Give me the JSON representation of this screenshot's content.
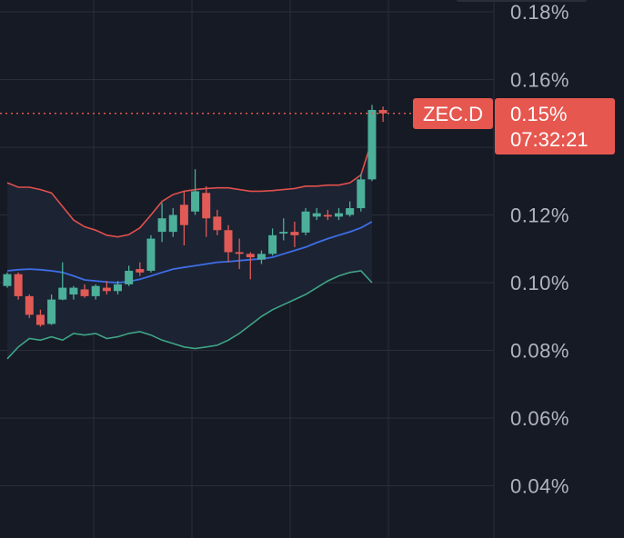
{
  "symbol_tag": "ZEC.D",
  "price_tag": "0.15%",
  "countdown": "07:32:21",
  "colors": {
    "background": "#161a25",
    "grid": "#2a2e39",
    "up": "#4caf9a",
    "down": "#e15a55",
    "basis": "#3d6ee6",
    "upper": "#e0504c",
    "lower": "#3fa585",
    "band_fill": "#1c2333",
    "tag": "#e6574f",
    "tick_text": "#b2b5be"
  },
  "chart_data": {
    "type": "candlestick",
    "title": "",
    "y_axis": {
      "unit": "%",
      "ticks": [
        "0.18%",
        "0.16%",
        "0.12%",
        "0.10%",
        "0.08%",
        "0.06%",
        "0.04%"
      ],
      "tick_values": [
        0.18,
        0.16,
        0.12,
        0.1,
        0.08,
        0.06,
        0.04
      ],
      "range": [
        0.025,
        0.183
      ]
    },
    "current_price": 0.15,
    "candles": [
      {
        "o": 0.099,
        "h": 0.103,
        "l": 0.0985,
        "c": 0.1025
      },
      {
        "o": 0.1025,
        "h": 0.103,
        "l": 0.095,
        "c": 0.096
      },
      {
        "o": 0.096,
        "h": 0.0965,
        "l": 0.0895,
        "c": 0.0905
      },
      {
        "o": 0.0905,
        "h": 0.092,
        "l": 0.087,
        "c": 0.0875
      },
      {
        "o": 0.0878,
        "h": 0.0965,
        "l": 0.0875,
        "c": 0.095
      },
      {
        "o": 0.095,
        "h": 0.106,
        "l": 0.0948,
        "c": 0.0985
      },
      {
        "o": 0.0965,
        "h": 0.099,
        "l": 0.095,
        "c": 0.0985
      },
      {
        "o": 0.098,
        "h": 0.0995,
        "l": 0.0955,
        "c": 0.096
      },
      {
        "o": 0.096,
        "h": 0.0995,
        "l": 0.095,
        "c": 0.099
      },
      {
        "o": 0.0985,
        "h": 0.1005,
        "l": 0.0965,
        "c": 0.0975
      },
      {
        "o": 0.0975,
        "h": 0.1005,
        "l": 0.0965,
        "c": 0.0995
      },
      {
        "o": 0.0995,
        "h": 0.105,
        "l": 0.099,
        "c": 0.1035
      },
      {
        "o": 0.104,
        "h": 0.106,
        "l": 0.102,
        "c": 0.103
      },
      {
        "o": 0.1035,
        "h": 0.114,
        "l": 0.103,
        "c": 0.113
      },
      {
        "o": 0.115,
        "h": 0.1235,
        "l": 0.112,
        "c": 0.119
      },
      {
        "o": 0.115,
        "h": 0.122,
        "l": 0.1135,
        "c": 0.12
      },
      {
        "o": 0.123,
        "h": 0.127,
        "l": 0.111,
        "c": 0.117
      },
      {
        "o": 0.121,
        "h": 0.1335,
        "l": 0.12,
        "c": 0.127
      },
      {
        "o": 0.1265,
        "h": 0.1285,
        "l": 0.1135,
        "c": 0.119
      },
      {
        "o": 0.1195,
        "h": 0.1215,
        "l": 0.114,
        "c": 0.1155
      },
      {
        "o": 0.1155,
        "h": 0.117,
        "l": 0.106,
        "c": 0.109
      },
      {
        "o": 0.109,
        "h": 0.113,
        "l": 0.104,
        "c": 0.1085
      },
      {
        "o": 0.1085,
        "h": 0.109,
        "l": 0.101,
        "c": 0.1075
      },
      {
        "o": 0.1068,
        "h": 0.1095,
        "l": 0.1055,
        "c": 0.1085
      },
      {
        "o": 0.1085,
        "h": 0.116,
        "l": 0.108,
        "c": 0.114
      },
      {
        "o": 0.1145,
        "h": 0.119,
        "l": 0.1125,
        "c": 0.115
      },
      {
        "o": 0.115,
        "h": 0.118,
        "l": 0.1105,
        "c": 0.114
      },
      {
        "o": 0.1148,
        "h": 0.122,
        "l": 0.114,
        "c": 0.121
      },
      {
        "o": 0.1195,
        "h": 0.122,
        "l": 0.1185,
        "c": 0.1205
      },
      {
        "o": 0.12,
        "h": 0.1215,
        "l": 0.1185,
        "c": 0.1195
      },
      {
        "o": 0.1195,
        "h": 0.122,
        "l": 0.1185,
        "c": 0.1205
      },
      {
        "o": 0.12,
        "h": 0.124,
        "l": 0.1195,
        "c": 0.122
      },
      {
        "o": 0.122,
        "h": 0.132,
        "l": 0.121,
        "c": 0.1305
      },
      {
        "o": 0.1305,
        "h": 0.1525,
        "l": 0.13,
        "c": 0.151
      },
      {
        "o": 0.151,
        "h": 0.152,
        "l": 0.1475,
        "c": 0.15
      }
    ],
    "bollinger": {
      "upper": [
        0.1295,
        0.1282,
        0.1282,
        0.1275,
        0.1265,
        0.1225,
        0.1185,
        0.1165,
        0.1155,
        0.114,
        0.1135,
        0.1142,
        0.1162,
        0.12,
        0.124,
        0.126,
        0.127,
        0.1275,
        0.1278,
        0.128,
        0.128,
        0.1275,
        0.127,
        0.127,
        0.1272,
        0.1275,
        0.1278,
        0.1285,
        0.1285,
        0.1288,
        0.1288,
        0.1295,
        0.1318,
        0.142
      ],
      "basis": [
        0.1035,
        0.1038,
        0.104,
        0.1038,
        0.1035,
        0.103,
        0.102,
        0.1008,
        0.1005,
        0.1002,
        0.1,
        0.1003,
        0.101,
        0.102,
        0.103,
        0.104,
        0.1045,
        0.105,
        0.1055,
        0.106,
        0.1062,
        0.1065,
        0.1068,
        0.107,
        0.1075,
        0.1085,
        0.1095,
        0.1105,
        0.1118,
        0.113,
        0.114,
        0.115,
        0.1162,
        0.118
      ],
      "lower": [
        0.0775,
        0.081,
        0.0835,
        0.083,
        0.084,
        0.083,
        0.085,
        0.0845,
        0.085,
        0.0835,
        0.084,
        0.085,
        0.0855,
        0.0845,
        0.083,
        0.082,
        0.081,
        0.0805,
        0.081,
        0.0815,
        0.083,
        0.085,
        0.0875,
        0.09,
        0.092,
        0.0935,
        0.095,
        0.0965,
        0.0985,
        0.1005,
        0.102,
        0.103,
        0.1035,
        0.1
      ]
    },
    "grid": true
  }
}
